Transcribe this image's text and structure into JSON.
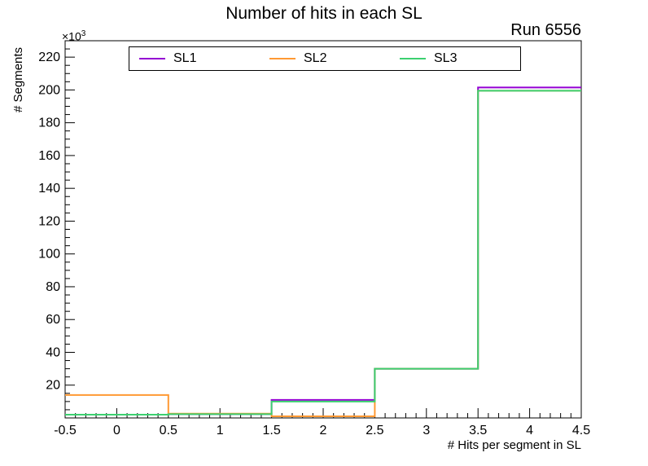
{
  "title": "Number of hits in each SL",
  "run_label": "Run 6556",
  "axis": {
    "y_title": "# Segments",
    "y_power": "×10",
    "y_power_exp": "3",
    "x_title": "# Hits per segment in SL"
  },
  "chart_data": {
    "type": "line",
    "style": "step-histogram",
    "title": "Number of hits in each SL",
    "subtitle": "Run 6556",
    "xlabel": "# Hits per segment in SL",
    "ylabel": "# Segments",
    "y_unit_scale": "×10³",
    "bin_edges": [
      -0.5,
      0.5,
      1.5,
      2.5,
      3.5,
      4.5
    ],
    "series": [
      {
        "name": "SL1",
        "color": "#9400d3",
        "values_k": [
          2.0,
          2.3,
          11.0,
          30.0,
          201.5
        ]
      },
      {
        "name": "SL2",
        "color": "#ff9933",
        "values_k": [
          14.0,
          2.6,
          1.0,
          30.0,
          199.5
        ]
      },
      {
        "name": "SL3",
        "color": "#3cd070",
        "values_k": [
          2.0,
          2.3,
          10.0,
          30.0,
          199.5
        ]
      }
    ],
    "xlim": [
      -0.5,
      4.5
    ],
    "ylim_k": [
      0,
      230
    ],
    "y_major_ticks_k": [
      20,
      40,
      60,
      80,
      100,
      120,
      140,
      160,
      180,
      200,
      220
    ],
    "x_major_ticks": [
      -0.5,
      0,
      0.5,
      1,
      1.5,
      2,
      2.5,
      3,
      3.5,
      4,
      4.5
    ],
    "legend_position": "top",
    "grid": false
  }
}
